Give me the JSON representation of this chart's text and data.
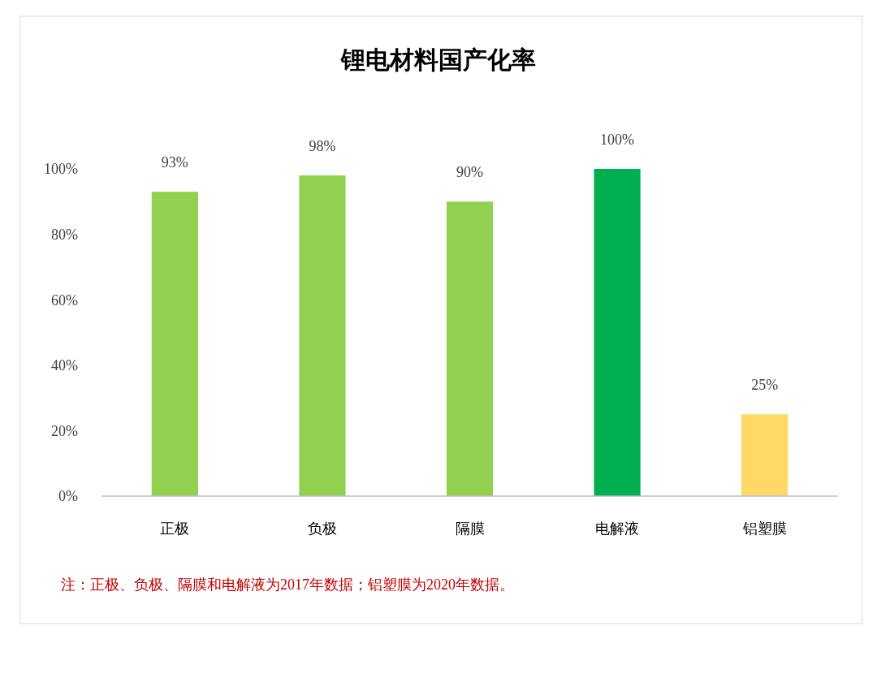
{
  "chart_data": {
    "type": "bar",
    "title": "锂电材料国产化率",
    "categories": [
      "正极",
      "负极",
      "隔膜",
      "电解液",
      "铝塑膜"
    ],
    "values": [
      93,
      98,
      90,
      100,
      25
    ],
    "colors": [
      "#92d050",
      "#92d050",
      "#92d050",
      "#00b050",
      "#ffd966"
    ],
    "value_labels": [
      "93%",
      "98%",
      "90%",
      "100%",
      "25%"
    ],
    "ylim": [
      0,
      100
    ],
    "yticks": [
      {
        "value": 0,
        "label": "0%"
      },
      {
        "value": 20,
        "label": "20%"
      },
      {
        "value": 40,
        "label": "40%"
      },
      {
        "value": 60,
        "label": "60%"
      },
      {
        "value": 80,
        "label": "80%"
      },
      {
        "value": 100,
        "label": "100%"
      }
    ],
    "grid": false,
    "annotations": [
      "注：正极、负极、隔膜和电解液为2017年数据；铝塑膜为2020年数据。"
    ]
  }
}
